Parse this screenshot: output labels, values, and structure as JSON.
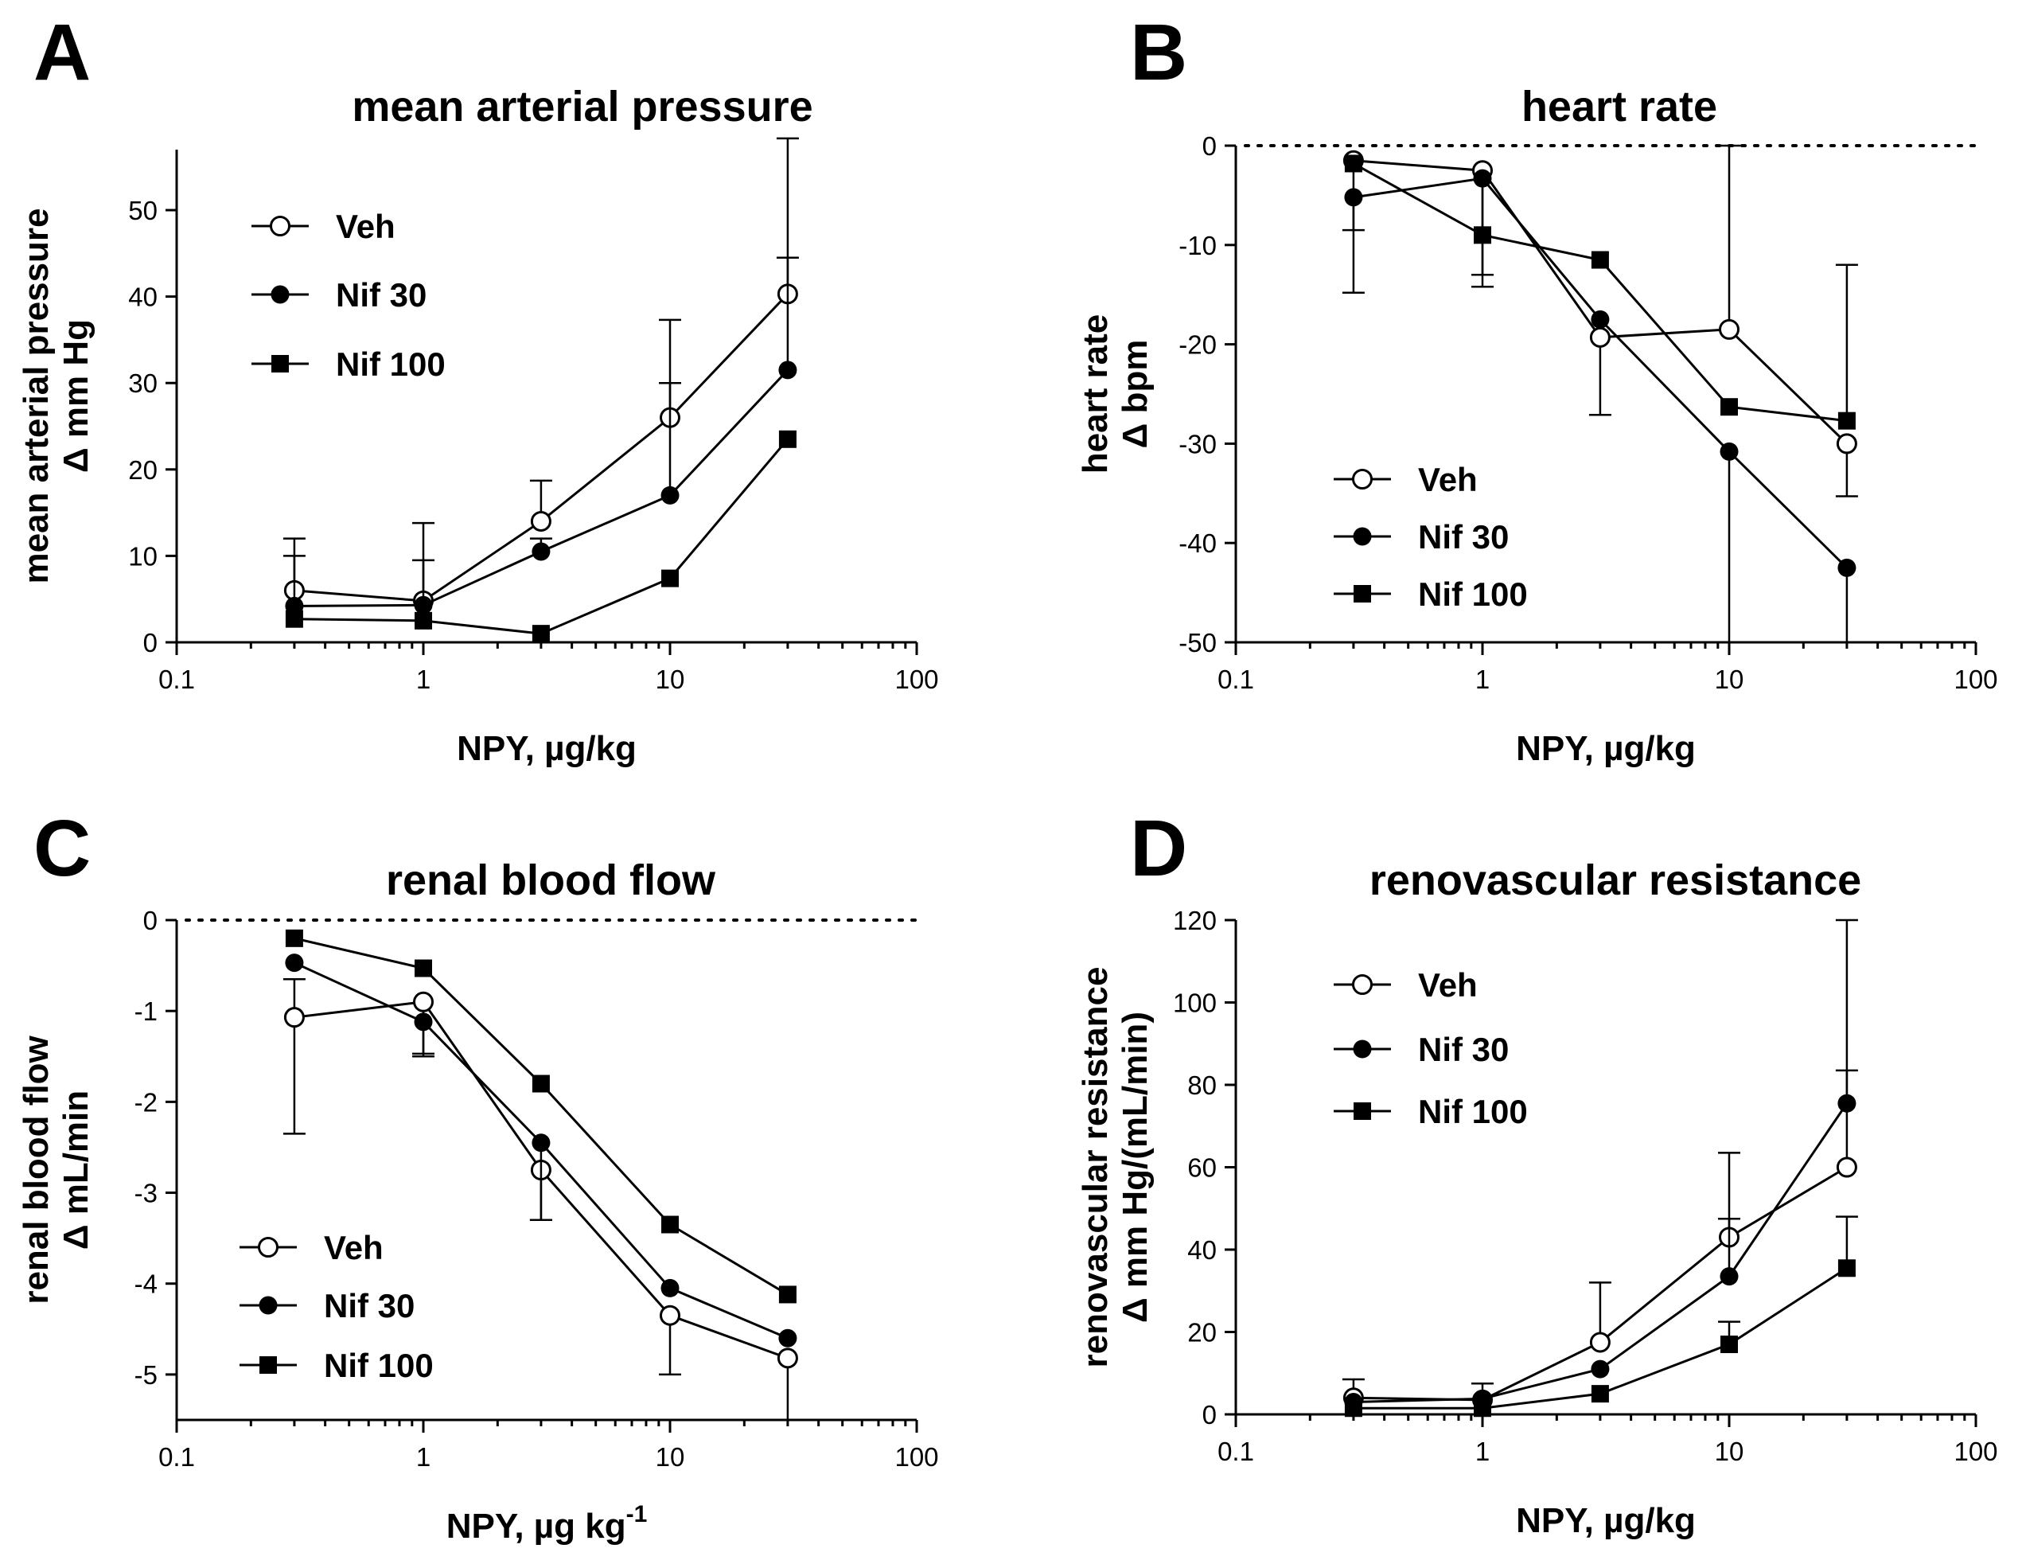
{
  "figure": {
    "series_names": [
      "Veh",
      "Nif 30",
      "Nif 100"
    ],
    "x_ticks": [
      "0.1",
      "1",
      "10",
      "100"
    ]
  },
  "chart_data": [
    {
      "panel": "A",
      "type": "line",
      "title": "mean arterial pressure",
      "xlabel": "NPY, µg/kg",
      "xlabel_super": "",
      "ylabel_line1": "mean arterial pressure",
      "ylabel_line2": "Δ mm Hg",
      "xscale": "log",
      "xlim": [
        0.1,
        100
      ],
      "ylim": [
        0,
        57
      ],
      "yticks": [
        0,
        10,
        20,
        30,
        40,
        50
      ],
      "zero_line": false,
      "legend_position": "top-left",
      "x": [
        0.3,
        1,
        3,
        10,
        30
      ],
      "series": [
        {
          "name": "Veh",
          "marker": "open-circle",
          "values": [
            6.0,
            4.8,
            14.0,
            26.0,
            40.3
          ],
          "err_up": [
            6.0,
            9.0,
            4.7,
            11.3,
            18.0
          ],
          "err_down": [
            0,
            0,
            0,
            0,
            0
          ]
        },
        {
          "name": "Nif 30",
          "marker": "filled-circle",
          "values": [
            4.2,
            4.3,
            10.5,
            17.0,
            31.5
          ],
          "err_up": [
            5.8,
            5.2,
            1.5,
            13.0,
            13.0
          ],
          "err_down": [
            0,
            0,
            0,
            0,
            0
          ]
        },
        {
          "name": "Nif 100",
          "marker": "filled-square",
          "values": [
            2.7,
            2.5,
            1.0,
            7.4,
            23.5
          ],
          "err_up": [
            0,
            0,
            0,
            0,
            0
          ],
          "err_down": [
            0,
            0,
            0,
            0,
            0
          ]
        }
      ]
    },
    {
      "panel": "B",
      "type": "line",
      "title": "heart rate",
      "xlabel": "NPY, µg/kg",
      "xlabel_super": "",
      "ylabel_line1": "heart rate",
      "ylabel_line2": "Δ bpm",
      "xscale": "log",
      "xlim": [
        0.1,
        100
      ],
      "ylim": [
        -50,
        0
      ],
      "yticks": [
        0,
        -10,
        -20,
        -30,
        -40,
        -50
      ],
      "zero_line": true,
      "legend_position": "bottom-left",
      "x": [
        0.3,
        1,
        3,
        10,
        30
      ],
      "series": [
        {
          "name": "Veh",
          "marker": "open-circle",
          "values": [
            -1.5,
            -2.5,
            -19.3,
            -18.5,
            -30.0
          ],
          "err_up": [
            0,
            0,
            0,
            18.5,
            0
          ],
          "err_down": [
            7.0,
            10.5,
            7.8,
            0,
            5.3
          ]
        },
        {
          "name": "Nif 30",
          "marker": "filled-circle",
          "values": [
            -5.2,
            -3.3,
            -17.5,
            -30.8,
            -42.5
          ],
          "err_up": [
            0,
            0,
            0,
            0,
            0
          ],
          "err_down": [
            9.6,
            10.9,
            0,
            19.2,
            7.5
          ]
        },
        {
          "name": "Nif 100",
          "marker": "filled-square",
          "values": [
            -1.8,
            -9.0,
            -11.5,
            -26.3,
            -27.7
          ],
          "err_up": [
            0,
            0,
            0,
            0,
            15.7
          ],
          "err_down": [
            0,
            0,
            0,
            0,
            0
          ]
        }
      ]
    },
    {
      "panel": "C",
      "type": "line",
      "title": "renal blood flow",
      "xlabel": "NPY, µg kg",
      "xlabel_super": "-1",
      "ylabel_line1": "renal blood flow",
      "ylabel_line2": "Δ mL/min",
      "xscale": "log",
      "xlim": [
        0.1,
        100
      ],
      "ylim": [
        -5.5,
        0
      ],
      "yticks": [
        0,
        -1,
        -2,
        -3,
        -4,
        -5
      ],
      "zero_line": true,
      "legend_position": "bottom-left",
      "x": [
        0.3,
        1,
        3,
        10,
        30
      ],
      "series": [
        {
          "name": "Veh",
          "marker": "open-circle",
          "values": [
            -1.07,
            -0.9,
            -2.75,
            -4.35,
            -4.82
          ],
          "err_up": [
            0.42,
            0,
            0,
            0,
            0
          ],
          "err_down": [
            1.28,
            0.6,
            0.55,
            0.65,
            0.68
          ]
        },
        {
          "name": "Nif 30",
          "marker": "filled-circle",
          "values": [
            -0.47,
            -1.12,
            -2.45,
            -4.05,
            -4.6
          ],
          "err_up": [
            0,
            0,
            0,
            0,
            0
          ],
          "err_down": [
            0,
            0.35,
            0.85,
            0,
            0
          ]
        },
        {
          "name": "Nif 100",
          "marker": "filled-square",
          "values": [
            -0.2,
            -0.53,
            -1.8,
            -3.35,
            -4.12
          ],
          "err_up": [
            0,
            0,
            0,
            0,
            0
          ],
          "err_down": [
            0,
            0,
            0,
            0,
            0
          ]
        }
      ]
    },
    {
      "panel": "D",
      "type": "line",
      "title": "renovascular resistance",
      "xlabel": "NPY, µg/kg",
      "xlabel_super": "",
      "ylabel_line1": "renovascular resistance",
      "ylabel_line2": "Δ mm Hg/(mL/min)",
      "xscale": "log",
      "xlim": [
        0.1,
        100
      ],
      "ylim": [
        0,
        120
      ],
      "yticks": [
        0,
        20,
        40,
        60,
        80,
        100,
        120
      ],
      "zero_line": false,
      "legend_position": "top-left",
      "x": [
        0.3,
        1,
        3,
        10,
        30
      ],
      "series": [
        {
          "name": "Veh",
          "marker": "open-circle",
          "values": [
            4.0,
            3.5,
            17.5,
            43.0,
            60.0
          ],
          "err_up": [
            4.5,
            4.0,
            14.5,
            20.5,
            23.5
          ],
          "err_down": [
            0,
            0,
            0,
            0,
            0
          ]
        },
        {
          "name": "Nif 30",
          "marker": "filled-circle",
          "values": [
            3.0,
            3.8,
            11.0,
            33.5,
            75.5
          ],
          "err_up": [
            0,
            0,
            0,
            14.0,
            44.5
          ],
          "err_down": [
            0,
            0,
            0,
            0,
            0
          ]
        },
        {
          "name": "Nif 100",
          "marker": "filled-square",
          "values": [
            1.5,
            1.5,
            5.0,
            17.0,
            35.5
          ],
          "err_up": [
            0,
            0,
            0,
            5.5,
            12.5
          ],
          "err_down": [
            0,
            0,
            0,
            0,
            0
          ]
        }
      ]
    }
  ]
}
